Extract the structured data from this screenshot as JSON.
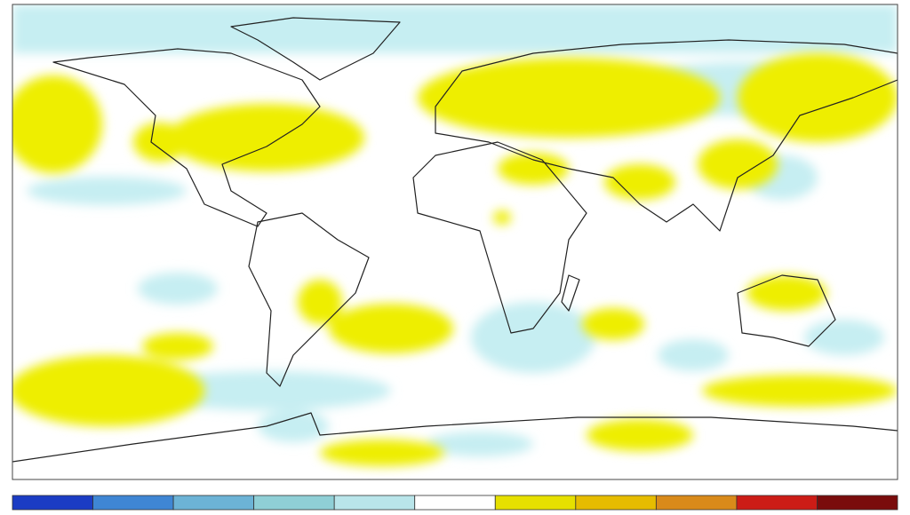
{
  "colorbar": {
    "colors": [
      "#1b3cc4",
      "#3f86d4",
      "#6cb3d6",
      "#8fcfd6",
      "#b9e5ea",
      "#ffffff",
      "#e6e000",
      "#e6bc00",
      "#d98a1a",
      "#cc1c16",
      "#7a0c0c"
    ]
  }
}
